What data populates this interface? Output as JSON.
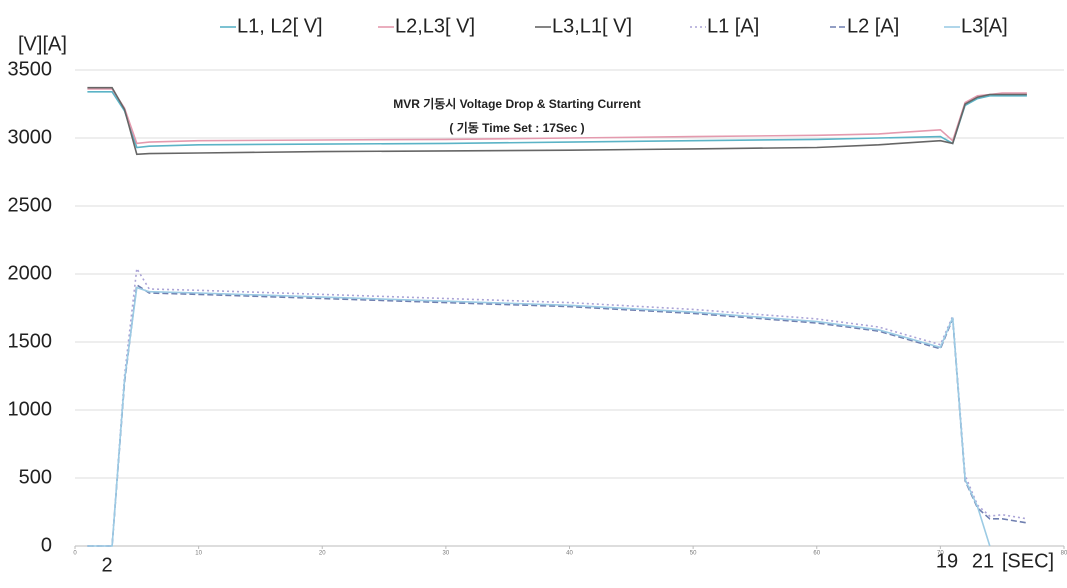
{
  "chart_data": {
    "type": "line",
    "title": "MVR 기동시 Voltage Drop & Starting Current",
    "subtitle": "( 기동 Time Set : 17Sec )",
    "y_label": "[V][A]",
    "annotations": [
      "2",
      "19",
      "21",
      "[SEC]"
    ],
    "x": [
      1,
      3,
      4,
      5,
      6,
      10,
      20,
      30,
      40,
      50,
      60,
      65,
      70,
      71,
      72,
      73,
      74,
      75,
      77
    ],
    "series": [
      {
        "name": "L1, L2[ V]",
        "color": "#5bb3c6",
        "dash": "solid",
        "values": [
          3340,
          3340,
          3200,
          2930,
          2940,
          2950,
          2955,
          2960,
          2970,
          2980,
          2990,
          3000,
          3010,
          2960,
          3240,
          3290,
          3310,
          3310,
          3310
        ]
      },
      {
        "name": "L2,L3[ V]",
        "color": "#e49aae",
        "dash": "solid",
        "values": [
          3360,
          3360,
          3220,
          2960,
          2970,
          2980,
          2985,
          2990,
          3000,
          3010,
          3020,
          3030,
          3060,
          2980,
          3260,
          3310,
          3320,
          3330,
          3330
        ]
      },
      {
        "name": "L3,L1[ V]",
        "color": "#666666",
        "dash": "solid",
        "values": [
          3370,
          3370,
          3210,
          2880,
          2885,
          2890,
          2900,
          2905,
          2910,
          2920,
          2930,
          2950,
          2980,
          2960,
          3250,
          3300,
          3320,
          3320,
          3320
        ]
      },
      {
        "name": "L1 [A]",
        "color": "#aaa3d6",
        "dash": "dotted",
        "values": [
          0,
          0,
          1250,
          2040,
          1890,
          1880,
          1850,
          1820,
          1790,
          1740,
          1670,
          1610,
          1480,
          1690,
          520,
          300,
          220,
          230,
          200
        ]
      },
      {
        "name": "L2 [A]",
        "color": "#6f7fb0",
        "dash": "dashed",
        "values": [
          0,
          0,
          1200,
          1920,
          1860,
          1850,
          1820,
          1790,
          1760,
          1710,
          1640,
          1580,
          1450,
          1670,
          480,
          280,
          200,
          200,
          170
        ]
      },
      {
        "name": "L3[A]",
        "color": "#9ccbe4",
        "dash": "solid",
        "values": [
          0,
          0,
          1220,
          1900,
          1870,
          1860,
          1830,
          1800,
          1770,
          1720,
          1650,
          1590,
          1460,
          1680,
          490,
          290,
          0,
          null,
          null
        ]
      }
    ],
    "xlim": [
      0,
      80
    ],
    "xticks": [
      0,
      10,
      20,
      30,
      40,
      50,
      60,
      70,
      80
    ],
    "ylim": [
      0,
      3500
    ],
    "yticks": [
      0,
      500,
      1000,
      1500,
      2000,
      2500,
      3000,
      3500
    ],
    "grid": true,
    "legend": "top"
  }
}
